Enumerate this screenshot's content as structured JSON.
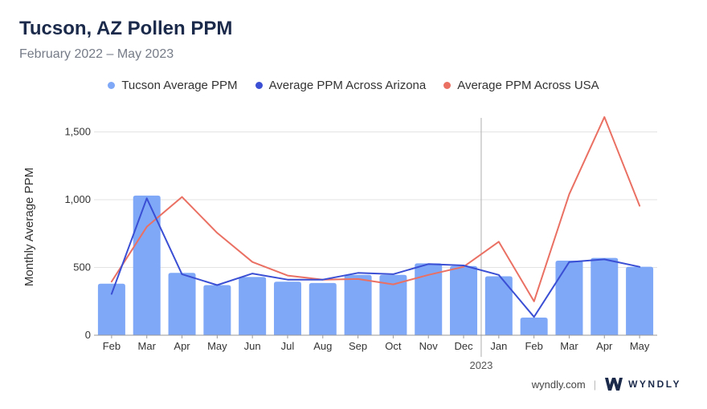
{
  "header": {
    "title": "Tucson, AZ Pollen PPM",
    "subtitle": "February 2022 – May 2023"
  },
  "footer": {
    "site": "wyndly.com",
    "separator": "|",
    "brand": "WYNDLY"
  },
  "colors": {
    "bar": "#7fa8f7",
    "arizona": "#3a4fd4",
    "usa": "#ea7063",
    "grid": "#e3e3e3",
    "divider": "#bbbbbb"
  },
  "chart_data": {
    "type": "bar",
    "ylabel": "Monthly Average PPM",
    "xlabel": "",
    "ylim": [
      0,
      1600
    ],
    "yticks": [
      0,
      500,
      1000,
      1500
    ],
    "ytick_labels": [
      "0",
      "500",
      "1,000",
      "1,500"
    ],
    "categories": [
      "Feb",
      "Mar",
      "Apr",
      "May",
      "Jun",
      "Jul",
      "Aug",
      "Sep",
      "Oct",
      "Nov",
      "Dec",
      "Jan",
      "Feb",
      "Mar",
      "Apr",
      "May"
    ],
    "year_marker": {
      "label": "2023",
      "before_index": 11
    },
    "legend_position": "top-center",
    "grid": true,
    "series": [
      {
        "name": "Tucson Average PPM",
        "kind": "bar",
        "color": "#7fa8f7",
        "values": [
          380,
          1030,
          460,
          370,
          430,
          395,
          385,
          445,
          445,
          530,
          510,
          435,
          130,
          550,
          570,
          505
        ]
      },
      {
        "name": "Average PPM Across Arizona",
        "kind": "line",
        "color": "#3a4fd4",
        "values": [
          305,
          1010,
          450,
          370,
          455,
          410,
          410,
          460,
          450,
          525,
          515,
          445,
          135,
          540,
          560,
          505
        ]
      },
      {
        "name": "Average PPM Across USA",
        "kind": "line",
        "color": "#ea7063",
        "values": [
          395,
          800,
          1020,
          755,
          540,
          440,
          410,
          415,
          375,
          445,
          505,
          690,
          250,
          1040,
          1610,
          955
        ]
      }
    ]
  }
}
